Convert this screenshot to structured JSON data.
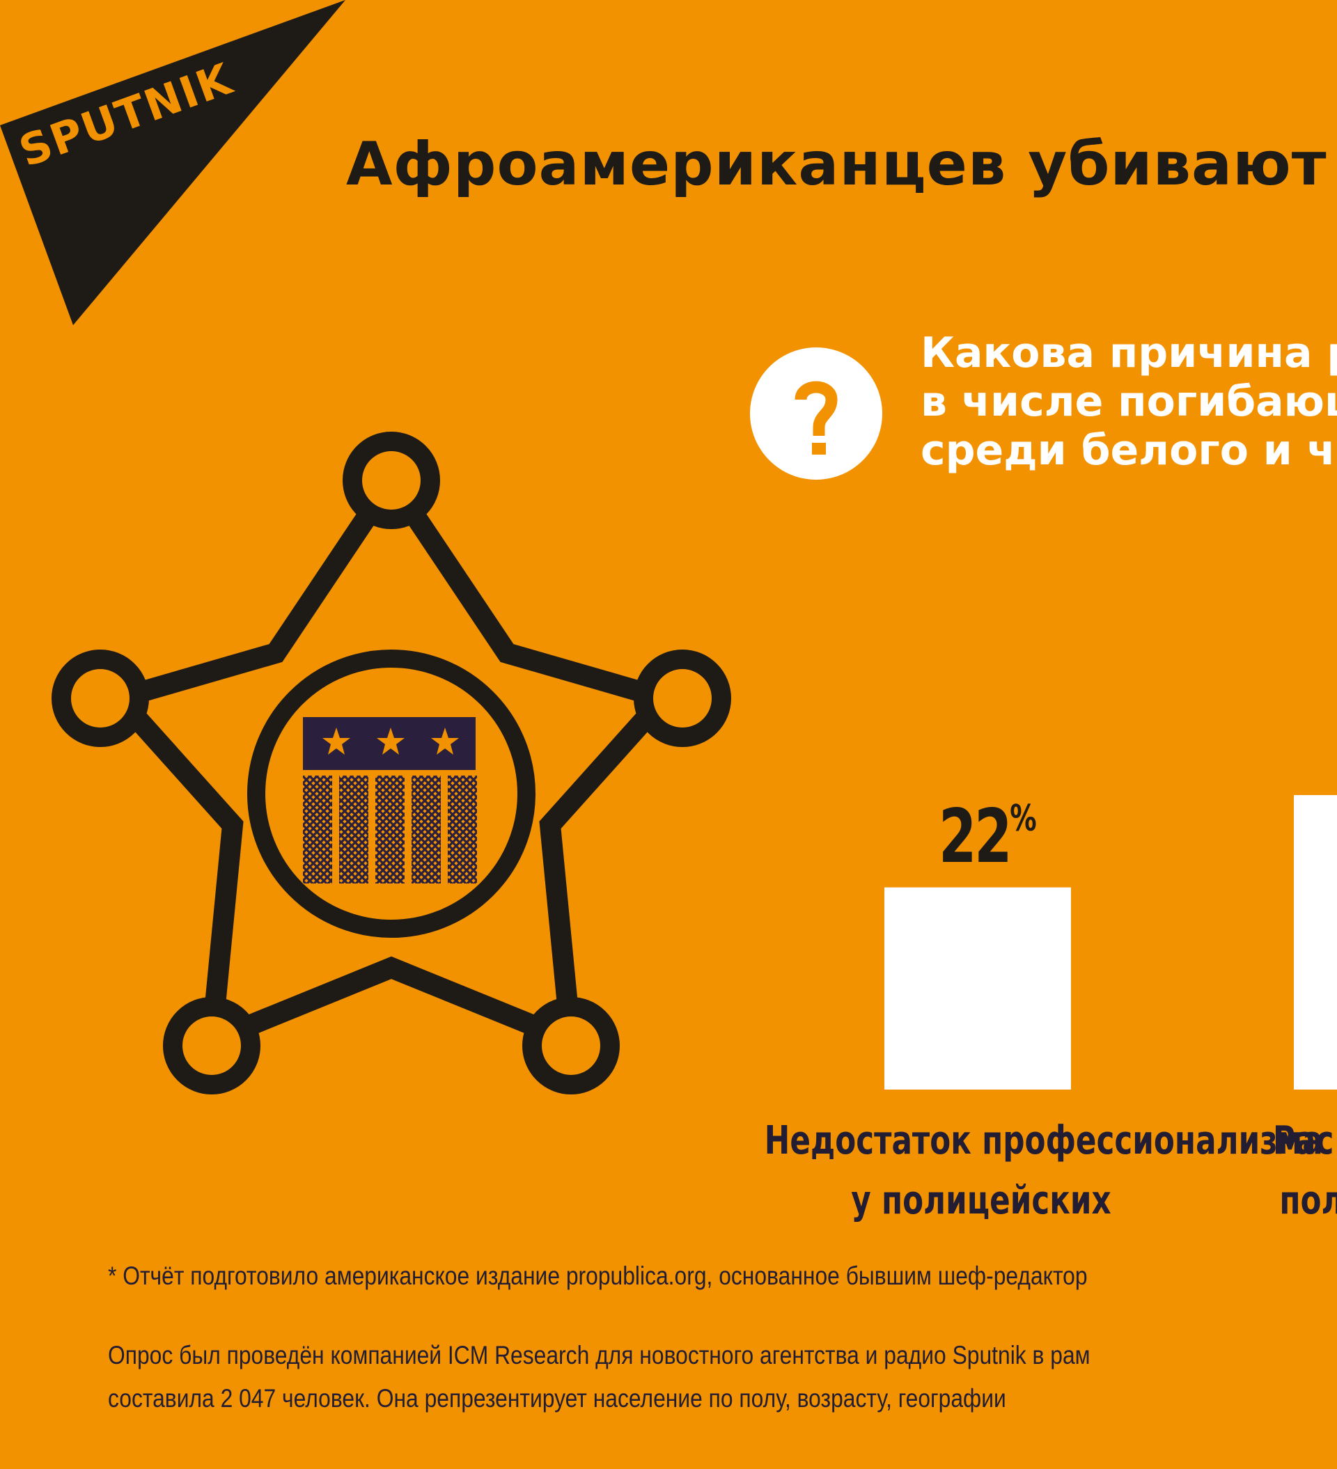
{
  "logo": {
    "text": "SPUTNIK"
  },
  "title": "Афроамериканцев убивают",
  "question": {
    "icon": "question-mark-icon",
    "lines": [
      "Какова причина р",
      "в числе погибающ",
      "среди белого и че"
    ]
  },
  "badge": {
    "icon": "sheriff-star-badge-icon"
  },
  "chart_data": {
    "type": "bar",
    "categories": [
      "Недостаток профессионализма у полицейских",
      "Рас... пол..."
    ],
    "values": [
      22,
      null
    ],
    "value_labels": [
      "22",
      ""
    ],
    "unit": "%",
    "bar_color": "#ffffff",
    "label_lines": [
      [
        "Недостаток профессионализма",
        "у полицейских"
      ],
      [
        "Рас",
        "пол"
      ]
    ]
  },
  "footnotes": {
    "note1": "* Отчёт подготовило американское издание propublica.org, основанное бывшим шеф-редактор",
    "note2_lines": [
      "Опрос был проведён компанией ICM Research для новостного агентства и радио Sputnik в рам",
      "составила 2 047 человек. Она репрезентирует население по полу, возрасту, географии"
    ]
  },
  "colors": {
    "background": "#f39200",
    "dark": "#1e1a16",
    "navy": "#2a1f3d",
    "white": "#ffffff",
    "star": "#f39200"
  }
}
